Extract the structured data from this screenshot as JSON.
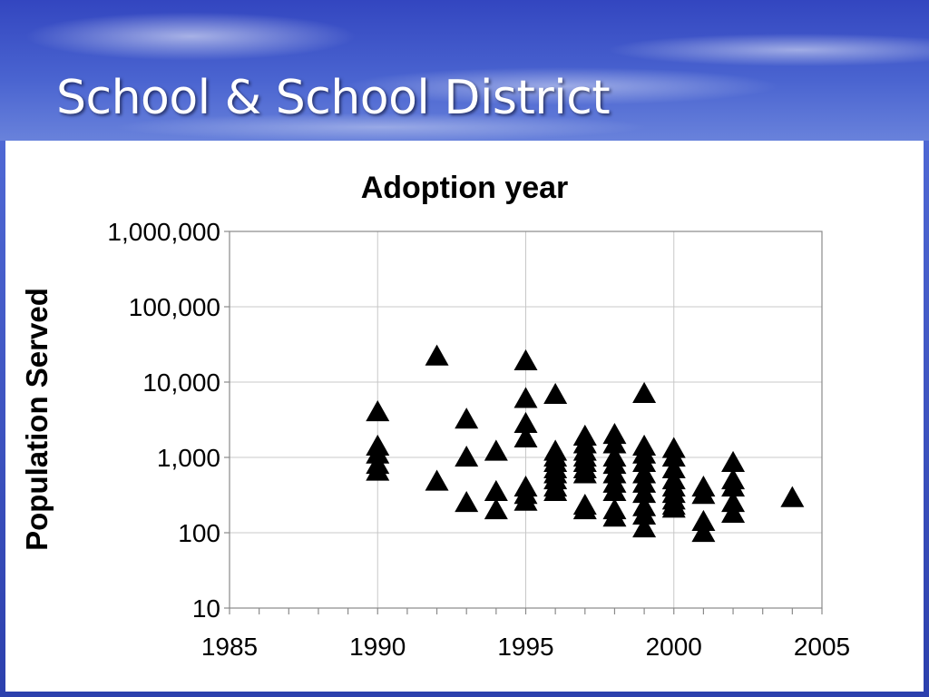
{
  "slide": {
    "title": "School & School District"
  },
  "chart_data": {
    "type": "scatter",
    "title": "Adoption year",
    "xlabel": "",
    "ylabel": "Population Served",
    "xlim": [
      1985,
      2005
    ],
    "ylim": [
      10,
      1000000
    ],
    "y_scale": "log",
    "x_ticks": [
      "1985",
      "1990",
      "1995",
      "2000",
      "2005"
    ],
    "y_ticks": [
      "10",
      "100",
      "1,000",
      "10,000",
      "100,000",
      "1,000,000"
    ],
    "grid": true,
    "legend": "none",
    "marker": "triangle",
    "marker_color": "#000000",
    "series": [
      {
        "points": [
          [
            1990,
            4000
          ],
          [
            1990,
            1400
          ],
          [
            1990,
            1100
          ],
          [
            1990,
            800
          ],
          [
            1990,
            650
          ],
          [
            1992,
            22000
          ],
          [
            1992,
            480
          ],
          [
            1993,
            3200
          ],
          [
            1993,
            1000
          ],
          [
            1993,
            250
          ],
          [
            1994,
            1200
          ],
          [
            1994,
            350
          ],
          [
            1994,
            200
          ],
          [
            1995,
            19000
          ],
          [
            1995,
            6000
          ],
          [
            1995,
            2800
          ],
          [
            1995,
            1800
          ],
          [
            1995,
            400
          ],
          [
            1995,
            320
          ],
          [
            1995,
            260
          ],
          [
            1996,
            6800
          ],
          [
            1996,
            1200
          ],
          [
            1996,
            1000
          ],
          [
            1996,
            850
          ],
          [
            1996,
            700
          ],
          [
            1996,
            600
          ],
          [
            1996,
            500
          ],
          [
            1996,
            400
          ],
          [
            1996,
            350
          ],
          [
            1997,
            1900
          ],
          [
            1997,
            1500
          ],
          [
            1997,
            1200
          ],
          [
            1997,
            1000
          ],
          [
            1997,
            850
          ],
          [
            1997,
            700
          ],
          [
            1997,
            600
          ],
          [
            1997,
            230
          ],
          [
            1997,
            200
          ],
          [
            1998,
            2000
          ],
          [
            1998,
            1500
          ],
          [
            1998,
            1000
          ],
          [
            1998,
            800
          ],
          [
            1998,
            600
          ],
          [
            1998,
            450
          ],
          [
            1998,
            350
          ],
          [
            1998,
            200
          ],
          [
            1998,
            160
          ],
          [
            1999,
            7000
          ],
          [
            1999,
            1400
          ],
          [
            1999,
            1100
          ],
          [
            1999,
            850
          ],
          [
            1999,
            600
          ],
          [
            1999,
            450
          ],
          [
            1999,
            330
          ],
          [
            1999,
            220
          ],
          [
            1999,
            170
          ],
          [
            1999,
            115
          ],
          [
            2000,
            1300
          ],
          [
            2000,
            1000
          ],
          [
            2000,
            700
          ],
          [
            2000,
            500
          ],
          [
            2000,
            400
          ],
          [
            2000,
            330
          ],
          [
            2000,
            270
          ],
          [
            2000,
            230
          ],
          [
            2000,
            210
          ],
          [
            2001,
            400
          ],
          [
            2001,
            320
          ],
          [
            2001,
            140
          ],
          [
            2001,
            100
          ],
          [
            2002,
            850
          ],
          [
            2002,
            500
          ],
          [
            2002,
            400
          ],
          [
            2002,
            250
          ],
          [
            2002,
            180
          ],
          [
            2004,
            290
          ]
        ]
      }
    ]
  }
}
